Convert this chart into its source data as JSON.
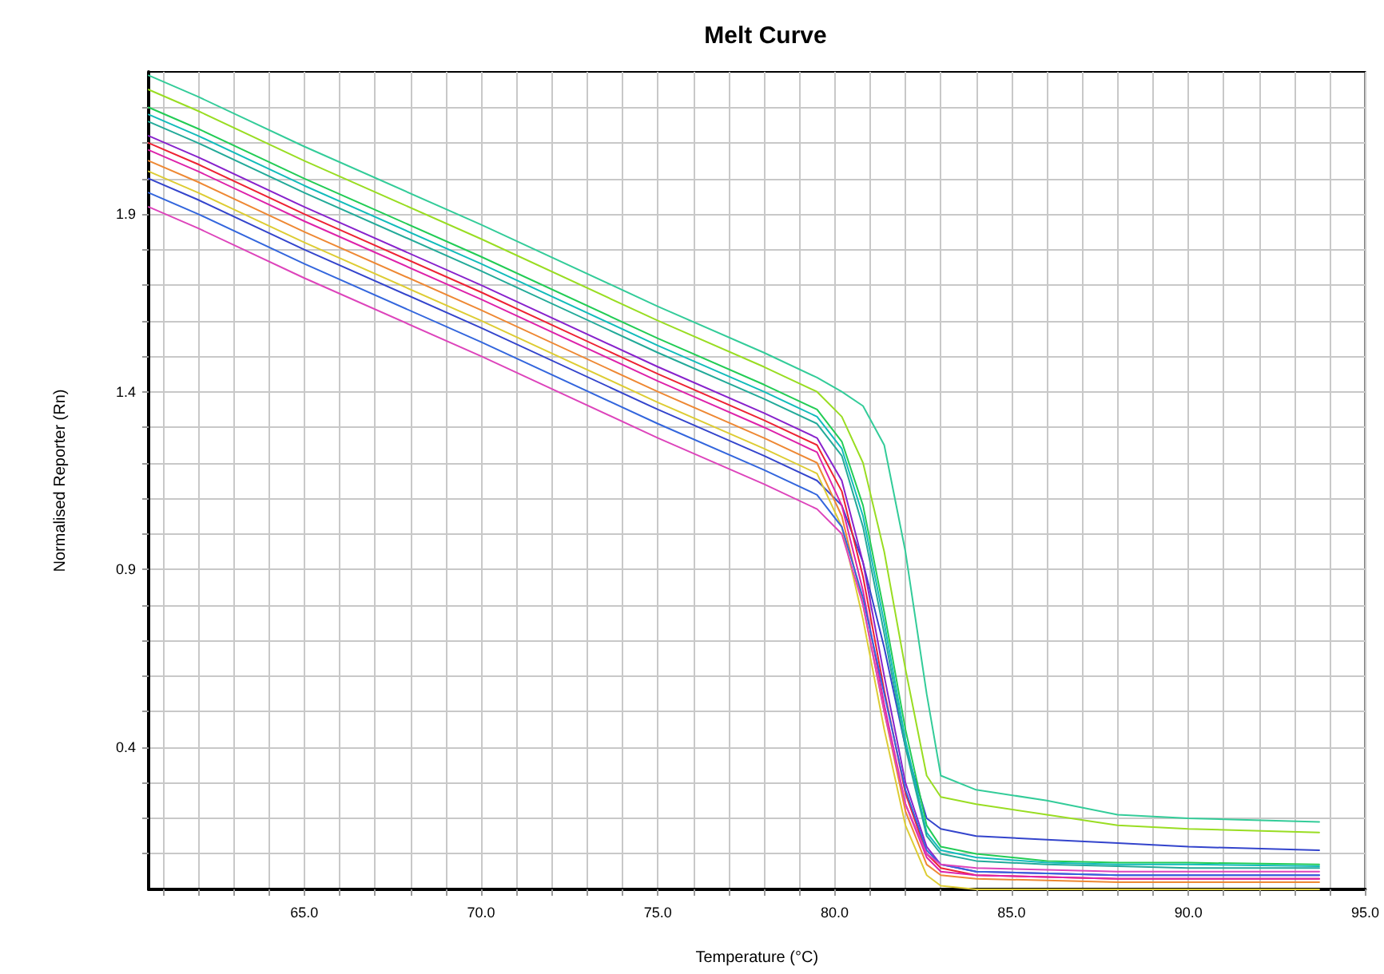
{
  "chart_data": {
    "type": "line",
    "title": "Melt Curve",
    "xlabel": "Temperature (°C)",
    "ylabel": "Normalised Reporter (Rn)",
    "x": [
      60.6,
      62,
      65,
      70,
      75,
      78,
      79.5,
      80.2,
      80.8,
      81.4,
      82,
      82.6,
      83,
      84,
      86,
      88,
      90,
      93.7
    ],
    "xlim": [
      60.6,
      95
    ],
    "xticks": [
      {
        "value": 61,
        "label": null
      },
      {
        "value": 62,
        "label": null
      },
      {
        "value": 63,
        "label": null
      },
      {
        "value": 64,
        "label": null
      },
      {
        "value": 65,
        "label": "65.0"
      },
      {
        "value": 66,
        "label": null
      },
      {
        "value": 67,
        "label": null
      },
      {
        "value": 68,
        "label": null
      },
      {
        "value": 69,
        "label": null
      },
      {
        "value": 70,
        "label": "70.0"
      },
      {
        "value": 71,
        "label": null
      },
      {
        "value": 72,
        "label": null
      },
      {
        "value": 73,
        "label": null
      },
      {
        "value": 74,
        "label": null
      },
      {
        "value": 75,
        "label": "75.0"
      },
      {
        "value": 76,
        "label": null
      },
      {
        "value": 77,
        "label": null
      },
      {
        "value": 78,
        "label": null
      },
      {
        "value": 79,
        "label": null
      },
      {
        "value": 80,
        "label": "80.0"
      },
      {
        "value": 81,
        "label": null
      },
      {
        "value": 82,
        "label": null
      },
      {
        "value": 83,
        "label": null
      },
      {
        "value": 84,
        "label": null
      },
      {
        "value": 85,
        "label": "85.0"
      },
      {
        "value": 86,
        "label": null
      },
      {
        "value": 87,
        "label": null
      },
      {
        "value": 88,
        "label": null
      },
      {
        "value": 89,
        "label": null
      },
      {
        "value": 90,
        "label": "90.0"
      },
      {
        "value": 91,
        "label": null
      },
      {
        "value": 92,
        "label": null
      },
      {
        "value": 93,
        "label": null
      },
      {
        "value": 94,
        "label": null
      },
      {
        "value": 95,
        "label": "95.0"
      }
    ],
    "ylim": [
      0,
      2.3
    ],
    "yticks": [
      {
        "value": 0.1,
        "label": null
      },
      {
        "value": 0.2,
        "label": null
      },
      {
        "value": 0.3,
        "label": null
      },
      {
        "value": 0.4,
        "label": "0.4"
      },
      {
        "value": 0.5,
        "label": null
      },
      {
        "value": 0.6,
        "label": null
      },
      {
        "value": 0.7,
        "label": null
      },
      {
        "value": 0.8,
        "label": null
      },
      {
        "value": 0.9,
        "label": "0.9"
      },
      {
        "value": 1.0,
        "label": null
      },
      {
        "value": 1.1,
        "label": null
      },
      {
        "value": 1.2,
        "label": null
      },
      {
        "value": 1.3,
        "label": null
      },
      {
        "value": 1.4,
        "label": "1.4"
      },
      {
        "value": 1.5,
        "label": null
      },
      {
        "value": 1.6,
        "label": null
      },
      {
        "value": 1.7,
        "label": null
      },
      {
        "value": 1.8,
        "label": null
      },
      {
        "value": 1.9,
        "label": "1.9"
      },
      {
        "value": 2.0,
        "label": null
      },
      {
        "value": 2.1,
        "label": null
      },
      {
        "value": 2.2,
        "label": null
      }
    ],
    "grid": true,
    "marker": "none",
    "line_style": "solid",
    "series": [
      {
        "color": "#33cc99",
        "values": [
          2.29,
          2.23,
          2.09,
          1.87,
          1.64,
          1.51,
          1.44,
          1.4,
          1.36,
          1.25,
          0.95,
          0.55,
          0.32,
          0.28,
          0.25,
          0.21,
          0.2,
          0.19
        ]
      },
      {
        "color": "#99dd22",
        "values": [
          2.25,
          2.19,
          2.05,
          1.83,
          1.6,
          1.47,
          1.4,
          1.33,
          1.2,
          0.95,
          0.62,
          0.32,
          0.26,
          0.24,
          0.21,
          0.18,
          0.17,
          0.16
        ]
      },
      {
        "color": "#3344cc",
        "values": [
          2.0,
          1.94,
          1.8,
          1.58,
          1.35,
          1.22,
          1.15,
          1.08,
          0.92,
          0.68,
          0.4,
          0.2,
          0.17,
          0.15,
          0.14,
          0.13,
          0.12,
          0.11
        ]
      },
      {
        "color": "#22cc55",
        "values": [
          2.2,
          2.14,
          2.0,
          1.78,
          1.55,
          1.42,
          1.35,
          1.26,
          1.08,
          0.78,
          0.45,
          0.18,
          0.12,
          0.1,
          0.08,
          0.075,
          0.075,
          0.07
        ]
      },
      {
        "color": "#11bbbb",
        "values": [
          2.18,
          2.12,
          1.98,
          1.76,
          1.53,
          1.4,
          1.33,
          1.24,
          1.05,
          0.75,
          0.42,
          0.16,
          0.11,
          0.09,
          0.075,
          0.07,
          0.07,
          0.065
        ]
      },
      {
        "color": "#22aa99",
        "values": [
          2.16,
          2.1,
          1.96,
          1.74,
          1.51,
          1.38,
          1.31,
          1.22,
          1.02,
          0.72,
          0.4,
          0.15,
          0.1,
          0.08,
          0.07,
          0.065,
          0.06,
          0.06
        ]
      },
      {
        "color": "#8822cc",
        "values": [
          2.12,
          2.06,
          1.92,
          1.7,
          1.47,
          1.34,
          1.27,
          1.15,
          0.92,
          0.6,
          0.3,
          0.12,
          0.07,
          0.05,
          0.045,
          0.04,
          0.04,
          0.04
        ]
      },
      {
        "color": "#ee2233",
        "values": [
          2.1,
          2.04,
          1.9,
          1.68,
          1.45,
          1.32,
          1.25,
          1.12,
          0.88,
          0.56,
          0.27,
          0.1,
          0.06,
          0.04,
          0.035,
          0.03,
          0.03,
          0.03
        ]
      },
      {
        "color": "#dd22aa",
        "values": [
          2.08,
          2.02,
          1.88,
          1.66,
          1.43,
          1.3,
          1.23,
          1.08,
          0.84,
          0.52,
          0.24,
          0.09,
          0.05,
          0.04,
          0.035,
          0.03,
          0.03,
          0.03
        ]
      },
      {
        "color": "#ee8833",
        "values": [
          2.05,
          1.99,
          1.85,
          1.63,
          1.4,
          1.27,
          1.2,
          1.05,
          0.8,
          0.5,
          0.22,
          0.07,
          0.04,
          0.03,
          0.025,
          0.02,
          0.02,
          0.02
        ]
      },
      {
        "color": "#ddcc33",
        "values": [
          2.02,
          1.96,
          1.82,
          1.6,
          1.37,
          1.24,
          1.17,
          1.02,
          0.76,
          0.45,
          0.18,
          0.04,
          0.01,
          0.0,
          0.0,
          0.0,
          0.0,
          0.0
        ]
      },
      {
        "color": "#3366dd",
        "values": [
          1.96,
          1.9,
          1.76,
          1.54,
          1.31,
          1.18,
          1.11,
          1.02,
          0.82,
          0.55,
          0.28,
          0.11,
          0.07,
          0.05,
          0.045,
          0.04,
          0.04,
          0.04
        ]
      },
      {
        "color": "#dd44bb",
        "values": [
          1.92,
          1.86,
          1.72,
          1.5,
          1.27,
          1.14,
          1.07,
          1.0,
          0.8,
          0.5,
          0.24,
          0.1,
          0.07,
          0.06,
          0.055,
          0.05,
          0.05,
          0.05
        ]
      }
    ]
  }
}
